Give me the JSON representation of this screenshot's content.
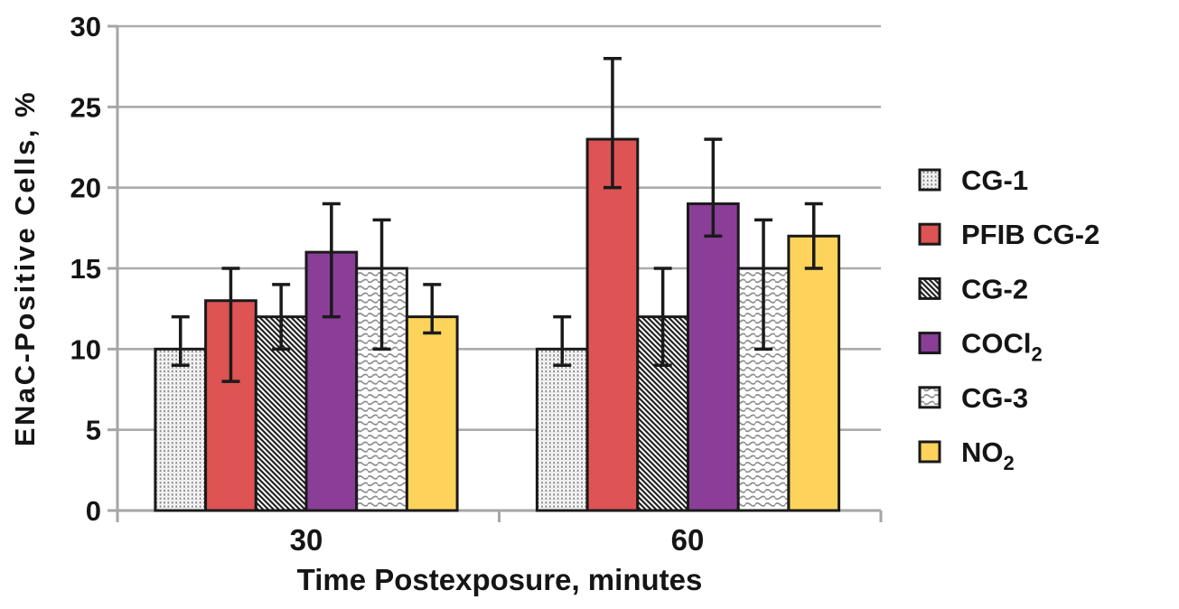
{
  "chart_data": {
    "type": "bar",
    "title": "",
    "xlabel": "Time Postexposure, minutes",
    "ylabel": "ENaC-Positive Cells, %",
    "categories": [
      "30",
      "60"
    ],
    "ylim": [
      0,
      30
    ],
    "yticks": [
      0,
      5,
      10,
      15,
      20,
      25,
      30
    ],
    "grid": true,
    "legend_position": "right",
    "series": [
      {
        "name": "CG-1",
        "label": "CG-1",
        "subscript": "",
        "fill": "dots",
        "values": [
          10,
          10
        ],
        "err_low": [
          9,
          9
        ],
        "err_high": [
          12,
          12
        ]
      },
      {
        "name": "PFIB CG-2",
        "label": "PFIB CG-2",
        "subscript": "",
        "fill": "#DE5353",
        "values": [
          13,
          23
        ],
        "err_low": [
          8,
          20
        ],
        "err_high": [
          15,
          28
        ]
      },
      {
        "name": "CG-2",
        "label": "CG-2",
        "subscript": "",
        "fill": "hatch",
        "values": [
          12,
          12
        ],
        "err_low": [
          10,
          9
        ],
        "err_high": [
          14,
          15
        ]
      },
      {
        "name": "COCl2",
        "label": "COCl",
        "subscript": "2",
        "fill": "#8B3E98",
        "values": [
          16,
          19
        ],
        "err_low": [
          12,
          17
        ],
        "err_high": [
          19,
          23
        ]
      },
      {
        "name": "CG-3",
        "label": "CG-3",
        "subscript": "",
        "fill": "waves",
        "values": [
          15,
          15
        ],
        "err_low": [
          10,
          10
        ],
        "err_high": [
          18,
          18
        ]
      },
      {
        "name": "NO2",
        "label": "NO",
        "subscript": "2",
        "fill": "#FDD35C",
        "values": [
          12,
          17
        ],
        "err_low": [
          11,
          15
        ],
        "err_high": [
          14,
          19
        ]
      }
    ],
    "colors": {
      "bar_border": "#1a1a1a",
      "error_bar": "#1a1a1a",
      "gridline": "#ababab",
      "axis": "#a6a6a6",
      "pattern_dot_gray": "#8f8f8f",
      "pattern_wave_gray": "#8f8f8f",
      "pattern_hatch_black": "#1a1a1a",
      "red": "#DE5353",
      "purple": "#8B3E98",
      "yellow": "#FDD35C"
    }
  }
}
